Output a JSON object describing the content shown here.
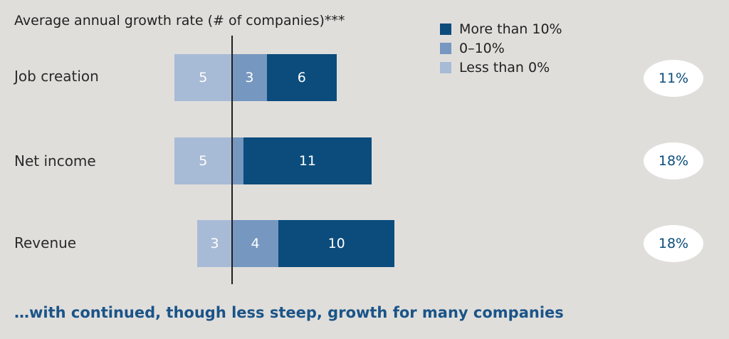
{
  "chart_data": {
    "type": "bar",
    "orientation": "horizontal",
    "stacked": true,
    "title": "Average annual growth rate  (# of companies)***",
    "categories": [
      "Job creation",
      "Net income",
      "Revenue"
    ],
    "series": [
      {
        "name": "Less than 0%",
        "values": [
          5,
          5,
          3
        ],
        "color": "#a8bbd6"
      },
      {
        "name": "0–10%",
        "values": [
          3,
          1,
          4
        ],
        "color": "#7697c0"
      },
      {
        "name": "More than 10%",
        "values": [
          6,
          11,
          10
        ],
        "color": "#0b4c7c"
      }
    ],
    "bar_labels": [
      [
        "5",
        "3",
        "6"
      ],
      [
        "5",
        "",
        "11"
      ],
      [
        "3",
        "4",
        "10"
      ]
    ],
    "legend_order": [
      "More than 10%",
      "0–10%",
      "Less than 0%"
    ],
    "legend_position": "top-right",
    "percent_badges": [
      "11%",
      "18%",
      "18%"
    ],
    "grid": false
  },
  "footer_text": "…with continued, though less steep, growth for many companies"
}
